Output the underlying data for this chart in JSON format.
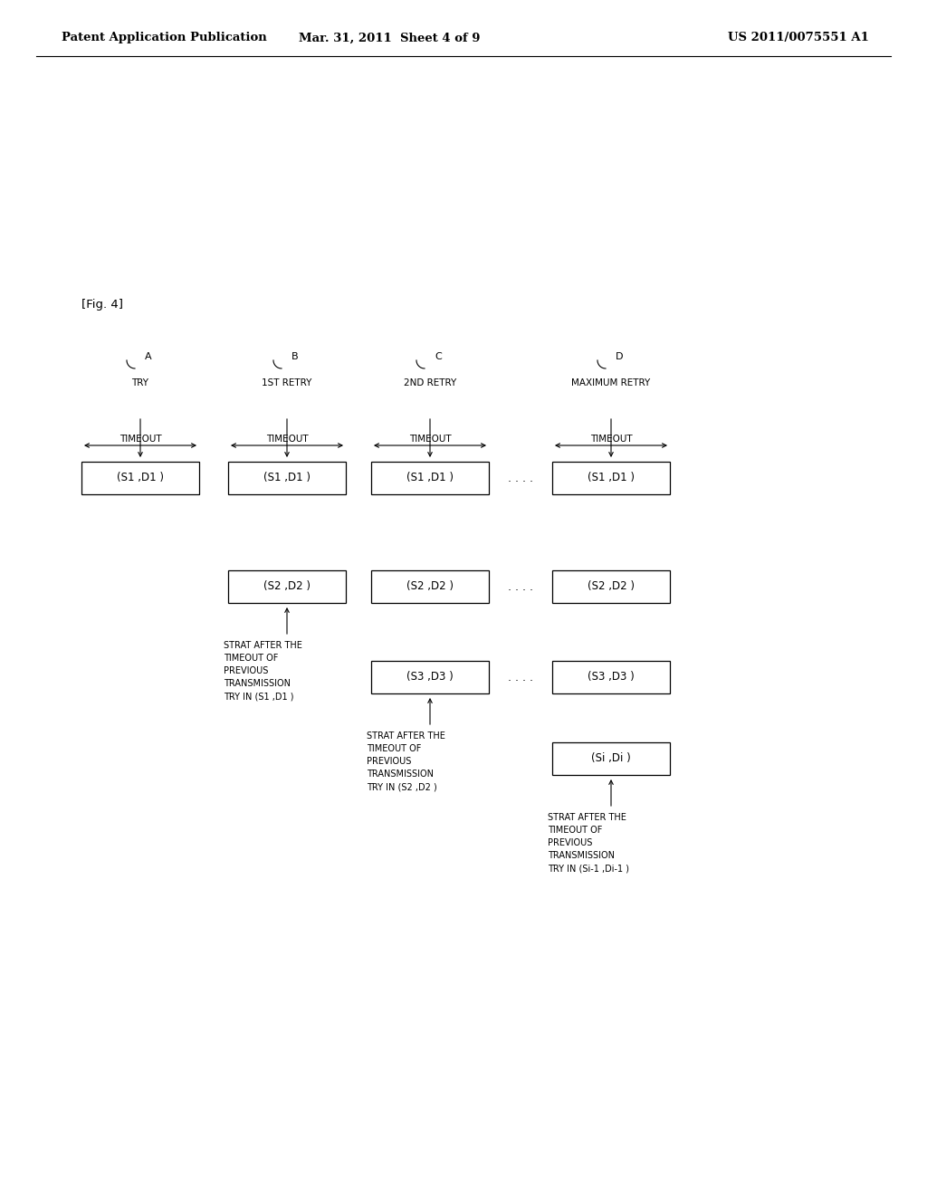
{
  "bg_color": "#ffffff",
  "header_left": "Patent Application Publication",
  "header_mid": "Mar. 31, 2011  Sheet 4 of 9",
  "header_right": "US 2011/0075551 A1",
  "fig_label": "[Fig. 4]",
  "col_labels": [
    "A",
    "B",
    "C",
    "D"
  ],
  "row_labels": [
    "TRY",
    "1ST RETRY",
    "2ND RETRY",
    "MAXIMUM RETRY"
  ],
  "timeout_label": "TIMEOUT",
  "dots": ". . . .",
  "box_row1": [
    "(S1 ,D1 )",
    "(S1 ,D1 )",
    "(S1 ,D1 )",
    "(S1 ,D1 )"
  ],
  "box_row2": [
    "(S2 ,D2 )",
    "(S2 ,D2 )",
    "(S2 ,D2 )"
  ],
  "box_row3": [
    "(S3 ,D3 )",
    "(S3 ,D3 )"
  ],
  "box_row4": [
    "(Si ,Di )"
  ],
  "note1_lines": [
    "STRAT AFTER THE",
    "TIMEOUT OF",
    "PREVIOUS",
    "TRANSMISSION",
    "TRY IN (S1 ,D1 )"
  ],
  "note2_lines": [
    "STRAT AFTER THE",
    "TIMEOUT OF",
    "PREVIOUS",
    "TRANSMISSION",
    "TRY IN (S2 ,D2 )"
  ],
  "note3_lines": [
    "STRAT AFTER THE",
    "TIMEOUT OF",
    "PREVIOUS",
    "TRANSMISSION",
    "TRY IN (Si-1 ,Di-1 )"
  ]
}
